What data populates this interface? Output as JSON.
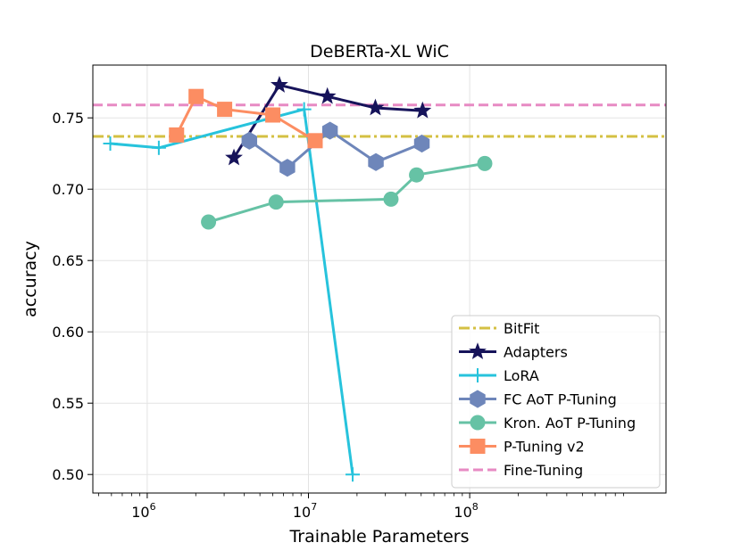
{
  "chart_data": {
    "type": "line",
    "title": "DeBERTa-XL WiC",
    "xlabel": "Trainable Parameters",
    "ylabel": "accuracy",
    "xscale": "log",
    "xlim": [
      460000,
      1650000000
    ],
    "ylim": [
      0.487,
      0.787
    ],
    "yticks": [
      0.5,
      0.55,
      0.6,
      0.65,
      0.7,
      0.75
    ],
    "ytick_labels": [
      "0.50",
      "0.55",
      "0.60",
      "0.65",
      "0.70",
      "0.75"
    ],
    "xticks": [
      {
        "value": 1000000,
        "base": "10",
        "exp": "6"
      },
      {
        "value": 10000000,
        "base": "10",
        "exp": "7"
      },
      {
        "value": 100000000,
        "base": "10",
        "exp": "8"
      }
    ],
    "grid": true,
    "legend_position": "bottom-right",
    "hlines": [
      {
        "name": "BitFit",
        "y": 0.737,
        "color": "#d4c043",
        "style": "dashdot"
      },
      {
        "name": "Fine-Tuning",
        "y": 0.759,
        "color": "#e78ac3",
        "style": "dashed"
      }
    ],
    "series": [
      {
        "name": "Adapters",
        "color": "#16135a",
        "marker": "star",
        "x": [
          3450000,
          6600000,
          13100000,
          26000000,
          51000000
        ],
        "y": [
          0.722,
          0.773,
          0.765,
          0.757,
          0.755
        ]
      },
      {
        "name": "LoRA",
        "color": "#27c3dc",
        "marker": "plus",
        "x": [
          590000,
          1180000,
          9400000,
          18800000
        ],
        "y": [
          0.732,
          0.729,
          0.756,
          0.5
        ]
      },
      {
        "name": "FC AoT P-Tuning",
        "color": "#6e86ba",
        "marker": "hexagon",
        "x": [
          4300000,
          7400000,
          13600000,
          26200000,
          50500000
        ],
        "y": [
          0.734,
          0.715,
          0.741,
          0.719,
          0.732
        ]
      },
      {
        "name": "Kron. AoT P-Tuning",
        "color": "#66c2a5",
        "marker": "circle",
        "x": [
          2400000,
          6300000,
          32500000,
          46800000,
          124000000
        ],
        "y": [
          0.677,
          0.691,
          0.693,
          0.71,
          0.718
        ]
      },
      {
        "name": "P-Tuning v2",
        "color": "#fc8d62",
        "marker": "square",
        "x": [
          1520000,
          2010000,
          3020000,
          6010000,
          11000000
        ],
        "y": [
          0.738,
          0.765,
          0.756,
          0.752,
          0.734
        ]
      }
    ],
    "legend_entries": [
      "BitFit",
      "Adapters",
      "LoRA",
      "FC AoT P-Tuning",
      "Kron. AoT P-Tuning",
      "P-Tuning v2",
      "Fine-Tuning"
    ]
  }
}
